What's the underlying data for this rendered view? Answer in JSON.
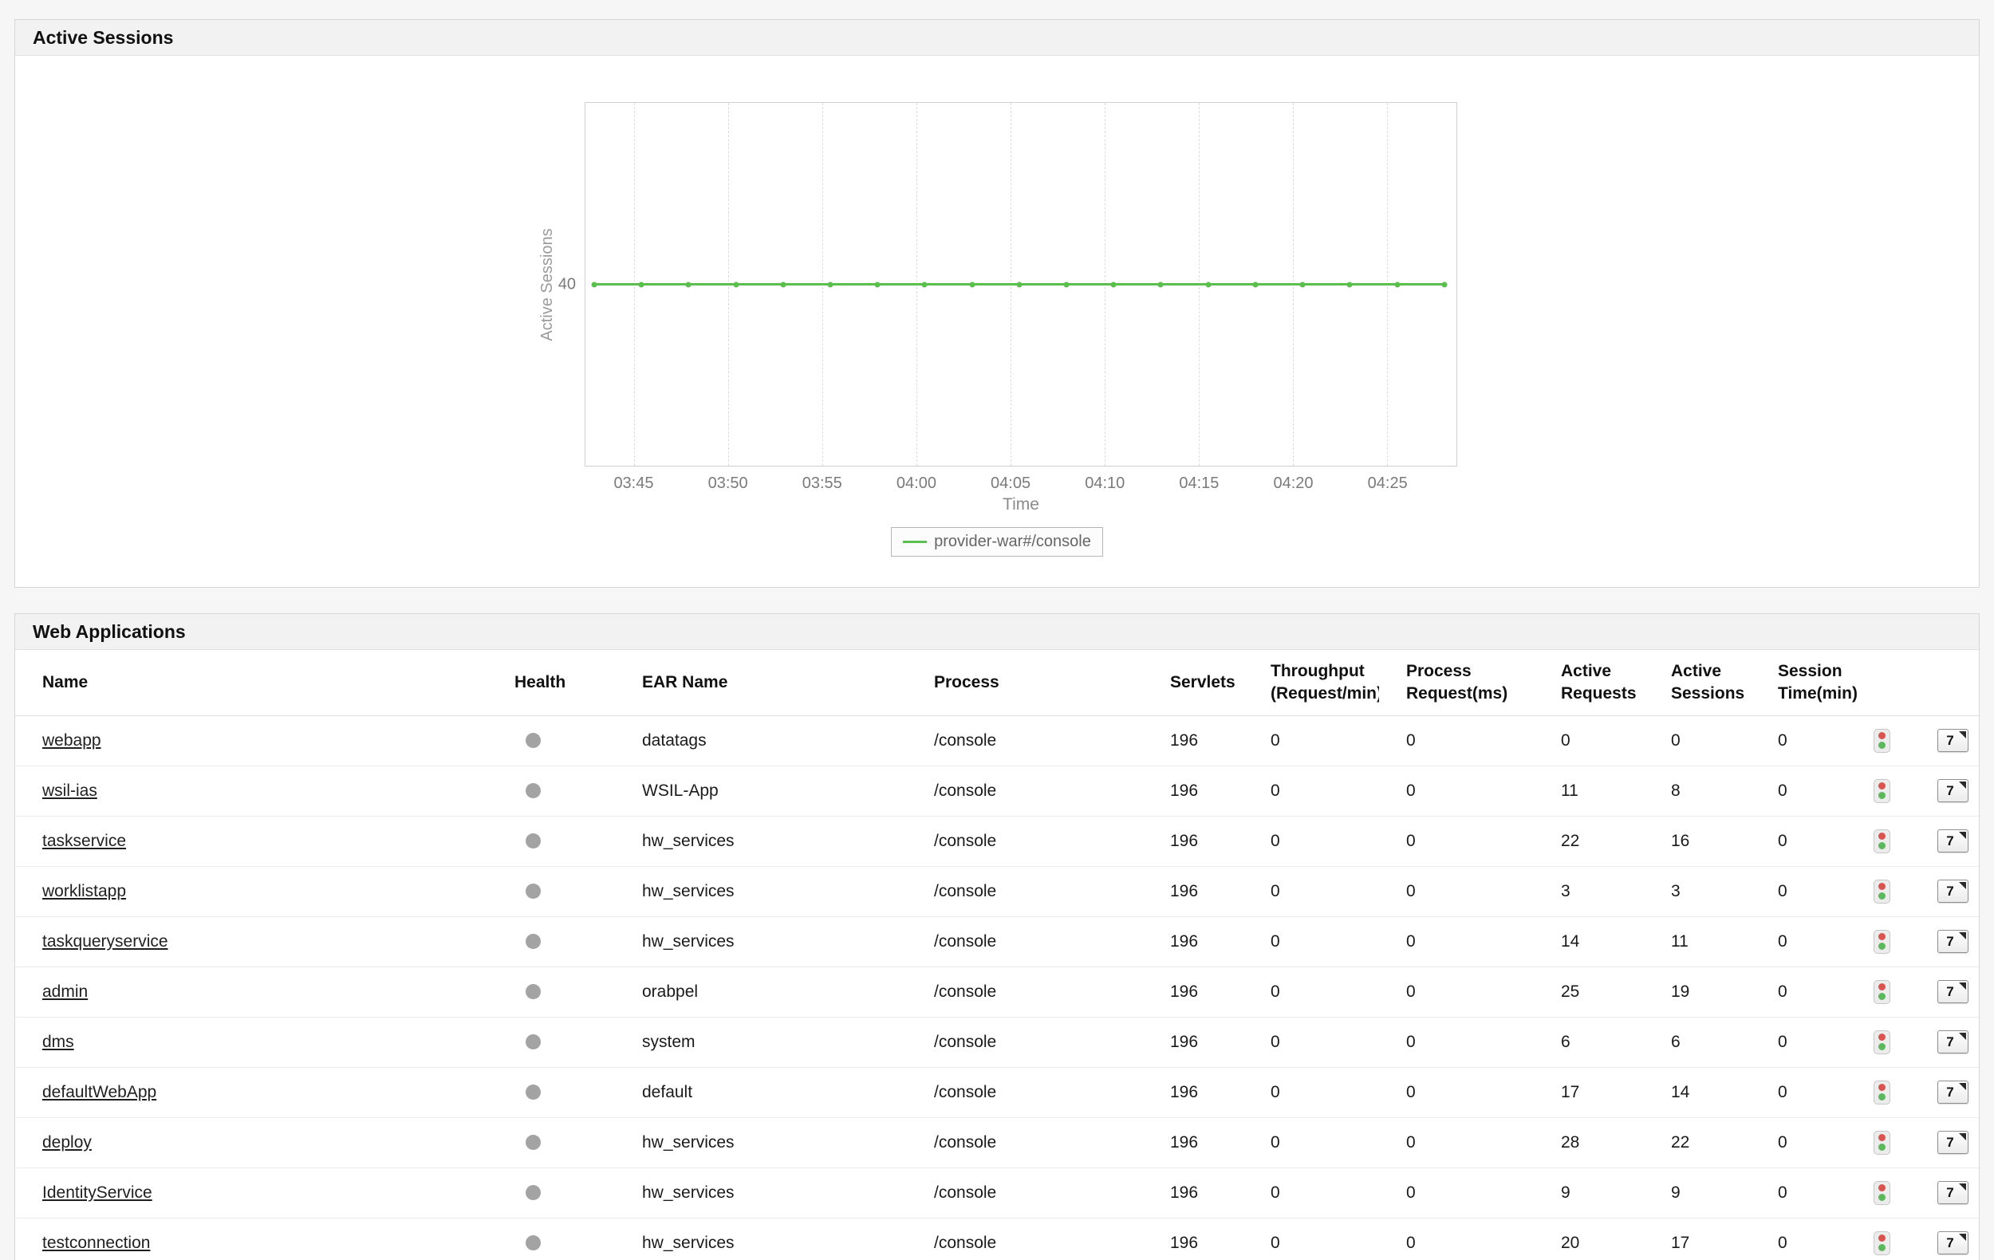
{
  "active_sessions": {
    "title": "Active Sessions",
    "chart_data": {
      "type": "line",
      "title": "Active Sessions",
      "xlabel": "Time",
      "ylabel": "Active Sessions",
      "y_tick": "40",
      "ylim": [
        0,
        80
      ],
      "x_ticks": [
        "03:45",
        "03:50",
        "03:55",
        "04:00",
        "04:05",
        "04:10",
        "04:15",
        "04:20",
        "04:25"
      ],
      "grid": "vertical-dashed",
      "legend_position": "bottom",
      "series": [
        {
          "name": "provider-war#/console",
          "color": "#5bbf4d",
          "points": [
            40,
            40,
            40,
            40,
            40,
            40,
            40,
            40,
            40,
            40,
            40,
            40,
            40,
            40,
            40,
            40,
            40,
            40,
            40
          ]
        }
      ]
    }
  },
  "web_applications": {
    "title": "Web Applications",
    "columns": [
      {
        "key": "name",
        "label": "Name"
      },
      {
        "key": "health",
        "label": "Health"
      },
      {
        "key": "ear",
        "label": "EAR Name"
      },
      {
        "key": "process",
        "label": "Process"
      },
      {
        "key": "servlets",
        "label": "Servlets"
      },
      {
        "key": "throughput",
        "label": "Throughput\n(Request/min)"
      },
      {
        "key": "process_request",
        "label": "Process\nRequest(ms)"
      },
      {
        "key": "active_requests",
        "label": "Active\nRequests"
      },
      {
        "key": "active_sessions",
        "label": "Active\nSessions"
      },
      {
        "key": "session_time",
        "label": "Session\nTime(min)"
      },
      {
        "key": "traffic",
        "label": ""
      },
      {
        "key": "metrics",
        "label": ""
      }
    ],
    "rows": [
      {
        "name": "webapp",
        "ear": "datatags",
        "process": "/console",
        "servlets": "196",
        "throughput": "0",
        "process_request": "0",
        "active_requests": "0",
        "active_sessions": "0",
        "session_time": "0"
      },
      {
        "name": "wsil-ias",
        "ear": "WSIL-App",
        "process": "/console",
        "servlets": "196",
        "throughput": "0",
        "process_request": "0",
        "active_requests": "11",
        "active_sessions": "8",
        "session_time": "0"
      },
      {
        "name": "taskservice",
        "ear": "hw_services",
        "process": "/console",
        "servlets": "196",
        "throughput": "0",
        "process_request": "0",
        "active_requests": "22",
        "active_sessions": "16",
        "session_time": "0"
      },
      {
        "name": "worklistapp",
        "ear": "hw_services",
        "process": "/console",
        "servlets": "196",
        "throughput": "0",
        "process_request": "0",
        "active_requests": "3",
        "active_sessions": "3",
        "session_time": "0"
      },
      {
        "name": "taskqueryservice",
        "ear": "hw_services",
        "process": "/console",
        "servlets": "196",
        "throughput": "0",
        "process_request": "0",
        "active_requests": "14",
        "active_sessions": "11",
        "session_time": "0"
      },
      {
        "name": "admin",
        "ear": "orabpel",
        "process": "/console",
        "servlets": "196",
        "throughput": "0",
        "process_request": "0",
        "active_requests": "25",
        "active_sessions": "19",
        "session_time": "0"
      },
      {
        "name": "dms",
        "ear": "system",
        "process": "/console",
        "servlets": "196",
        "throughput": "0",
        "process_request": "0",
        "active_requests": "6",
        "active_sessions": "6",
        "session_time": "0"
      },
      {
        "name": "defaultWebApp",
        "ear": "default",
        "process": "/console",
        "servlets": "196",
        "throughput": "0",
        "process_request": "0",
        "active_requests": "17",
        "active_sessions": "14",
        "session_time": "0"
      },
      {
        "name": "deploy",
        "ear": "hw_services",
        "process": "/console",
        "servlets": "196",
        "throughput": "0",
        "process_request": "0",
        "active_requests": "28",
        "active_sessions": "22",
        "session_time": "0"
      },
      {
        "name": "IdentityService",
        "ear": "hw_services",
        "process": "/console",
        "servlets": "196",
        "throughput": "0",
        "process_request": "0",
        "active_requests": "9",
        "active_sessions": "9",
        "session_time": "0"
      },
      {
        "name": "testconnection",
        "ear": "hw_services",
        "process": "/console",
        "servlets": "196",
        "throughput": "0",
        "process_request": "0",
        "active_requests": "20",
        "active_sessions": "17",
        "session_time": "0"
      }
    ],
    "icons": {
      "health_dot": "status-dot",
      "traffic_light": "traffic-light-icon",
      "metrics_button_label": "7"
    },
    "colors": {
      "health_dot": "#a3a3a3",
      "traffic_red": "#d9534f",
      "traffic_green": "#5cb85c"
    }
  }
}
